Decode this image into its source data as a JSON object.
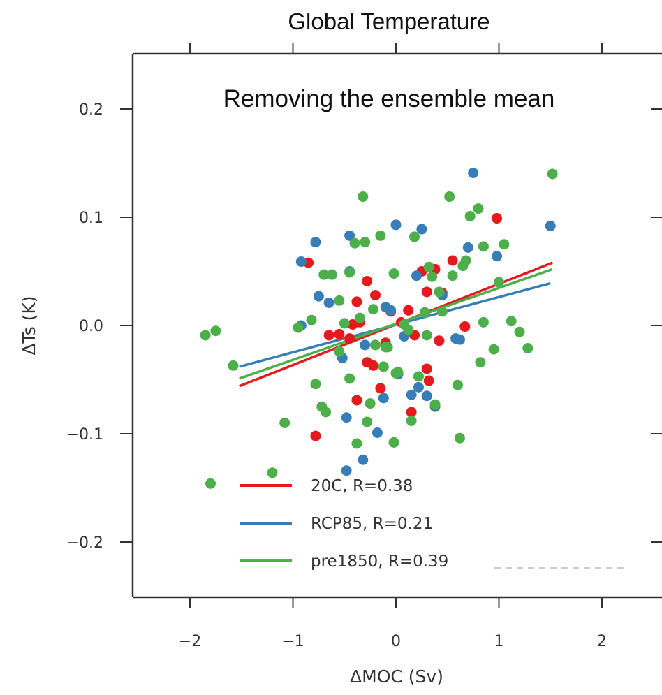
{
  "chart_data": {
    "type": "scatter",
    "title": "Global Temperature",
    "annotation": "Removing the ensemble mean",
    "xlabel": "ΔMOC (Sv)",
    "ylabel": "ΔTs (K)",
    "xlim": [
      -2.5,
      2.5
    ],
    "ylim": [
      -0.25,
      0.25
    ],
    "x_ticks": [
      -2,
      -1,
      0,
      1,
      2
    ],
    "x_tick_labels": [
      "−2",
      "−1",
      "0",
      "1",
      "2"
    ],
    "y_ticks": [
      -0.2,
      -0.1,
      0.0,
      0.1,
      0.2
    ],
    "y_tick_labels": [
      "−0.2",
      "−0.1",
      "0.0",
      "0.1",
      "0.2"
    ],
    "grid": false,
    "legend_position": "lower-left",
    "series": [
      {
        "name": "20C, R=0.38",
        "color": "#e41a1c",
        "fit": [
          [
            -1.52,
            -0.056
          ],
          [
            1.52,
            0.058
          ]
        ],
        "points": [
          [
            -0.85,
            0.058
          ],
          [
            -0.65,
            -0.009
          ],
          [
            -0.78,
            -0.102
          ],
          [
            -0.45,
            -0.012
          ],
          [
            -0.42,
            0.001
          ],
          [
            -0.38,
            0.022
          ],
          [
            -0.28,
            0.041
          ],
          [
            -0.35,
            0.003
          ],
          [
            -0.2,
            0.028
          ],
          [
            -0.28,
            -0.034
          ],
          [
            -0.22,
            -0.037
          ],
          [
            -0.15,
            -0.058
          ],
          [
            -0.1,
            -0.016
          ],
          [
            -0.05,
            0.013
          ],
          [
            0.05,
            0.003
          ],
          [
            0.12,
            0.014
          ],
          [
            0.18,
            -0.009
          ],
          [
            0.25,
            0.05
          ],
          [
            0.3,
            0.031
          ],
          [
            0.38,
            0.052
          ],
          [
            0.42,
            -0.014
          ],
          [
            0.3,
            -0.04
          ],
          [
            0.32,
            -0.051
          ],
          [
            0.15,
            -0.08
          ],
          [
            0.55,
            0.06
          ],
          [
            0.67,
            -0.001
          ],
          [
            0.98,
            0.099
          ],
          [
            -0.38,
            -0.069
          ],
          [
            0.45,
            0.03
          ],
          [
            -0.55,
            -0.008
          ]
        ]
      },
      {
        "name": "RCP85, R=0.21",
        "color": "#377eb8",
        "fit": [
          [
            -1.52,
            -0.038
          ],
          [
            1.5,
            0.039
          ]
        ],
        "points": [
          [
            -0.92,
            0.059
          ],
          [
            -0.78,
            0.077
          ],
          [
            -0.92,
            0.0
          ],
          [
            -0.75,
            0.027
          ],
          [
            -0.65,
            0.021
          ],
          [
            -0.45,
            0.083
          ],
          [
            -0.45,
            0.05
          ],
          [
            -0.52,
            -0.03
          ],
          [
            -0.48,
            -0.085
          ],
          [
            -0.48,
            -0.134
          ],
          [
            -0.32,
            -0.124
          ],
          [
            -0.3,
            -0.018
          ],
          [
            -0.18,
            -0.099
          ],
          [
            -0.12,
            -0.067
          ],
          [
            -0.1,
            0.017
          ],
          [
            -0.05,
            0.014
          ],
          [
            0.0,
            0.093
          ],
          [
            0.02,
            -0.045
          ],
          [
            0.08,
            -0.01
          ],
          [
            0.15,
            -0.064
          ],
          [
            0.22,
            -0.057
          ],
          [
            0.25,
            0.089
          ],
          [
            0.28,
            0.012
          ],
          [
            0.3,
            -0.065
          ],
          [
            0.38,
            -0.075
          ],
          [
            0.45,
            0.028
          ],
          [
            0.58,
            -0.012
          ],
          [
            0.62,
            -0.013
          ],
          [
            0.7,
            0.072
          ],
          [
            0.75,
            0.141
          ],
          [
            0.98,
            0.064
          ],
          [
            1.5,
            0.092
          ],
          [
            0.2,
            0.046
          ]
        ]
      },
      {
        "name": "pre1850, R=0.39",
        "color": "#4daf4a",
        "fit": [
          [
            -1.52,
            -0.049
          ],
          [
            1.52,
            0.052
          ]
        ],
        "points": [
          [
            -1.85,
            -0.009
          ],
          [
            -1.75,
            -0.005
          ],
          [
            -1.58,
            -0.037
          ],
          [
            -1.8,
            -0.146
          ],
          [
            -1.2,
            -0.136
          ],
          [
            -1.08,
            -0.09
          ],
          [
            -0.95,
            -0.002
          ],
          [
            -0.82,
            0.005
          ],
          [
            -0.78,
            -0.054
          ],
          [
            -0.72,
            -0.075
          ],
          [
            -0.68,
            -0.08
          ],
          [
            -0.7,
            0.047
          ],
          [
            -0.62,
            0.047
          ],
          [
            -0.55,
            0.023
          ],
          [
            -0.5,
            0.002
          ],
          [
            -0.45,
            -0.049
          ],
          [
            -0.4,
            0.076
          ],
          [
            -0.38,
            -0.109
          ],
          [
            -0.35,
            0.007
          ],
          [
            -0.32,
            0.119
          ],
          [
            -0.3,
            0.077
          ],
          [
            -0.28,
            -0.089
          ],
          [
            -0.25,
            -0.072
          ],
          [
            -0.22,
            0.015
          ],
          [
            -0.2,
            -0.018
          ],
          [
            -0.15,
            0.083
          ],
          [
            -0.12,
            -0.038
          ],
          [
            -0.08,
            -0.02
          ],
          [
            -0.02,
            0.048
          ],
          [
            -0.02,
            -0.108
          ],
          [
            0.02,
            -0.043
          ],
          [
            0.08,
            0.001
          ],
          [
            0.12,
            -0.004
          ],
          [
            0.15,
            -0.088
          ],
          [
            0.18,
            0.082
          ],
          [
            0.22,
            -0.047
          ],
          [
            0.28,
            0.012
          ],
          [
            0.32,
            0.054
          ],
          [
            0.35,
            0.045
          ],
          [
            0.38,
            -0.073
          ],
          [
            0.42,
            0.031
          ],
          [
            0.45,
            0.013
          ],
          [
            0.52,
            0.119
          ],
          [
            0.55,
            0.046
          ],
          [
            0.6,
            -0.055
          ],
          [
            0.62,
            -0.104
          ],
          [
            0.65,
            0.055
          ],
          [
            0.68,
            0.06
          ],
          [
            0.72,
            0.101
          ],
          [
            0.8,
            0.108
          ],
          [
            0.82,
            -0.034
          ],
          [
            0.85,
            0.073
          ],
          [
            0.85,
            0.003
          ],
          [
            0.95,
            -0.022
          ],
          [
            1.05,
            0.075
          ],
          [
            1.12,
            0.004
          ],
          [
            1.2,
            -0.006
          ],
          [
            1.28,
            -0.021
          ],
          [
            1.52,
            0.14
          ],
          [
            -0.45,
            0.049
          ],
          [
            -0.55,
            -0.024
          ],
          [
            0.0,
            -0.044
          ],
          [
            0.3,
            -0.009
          ],
          [
            1.0,
            0.04
          ],
          [
            -0.1,
            -0.02
          ]
        ]
      }
    ]
  }
}
